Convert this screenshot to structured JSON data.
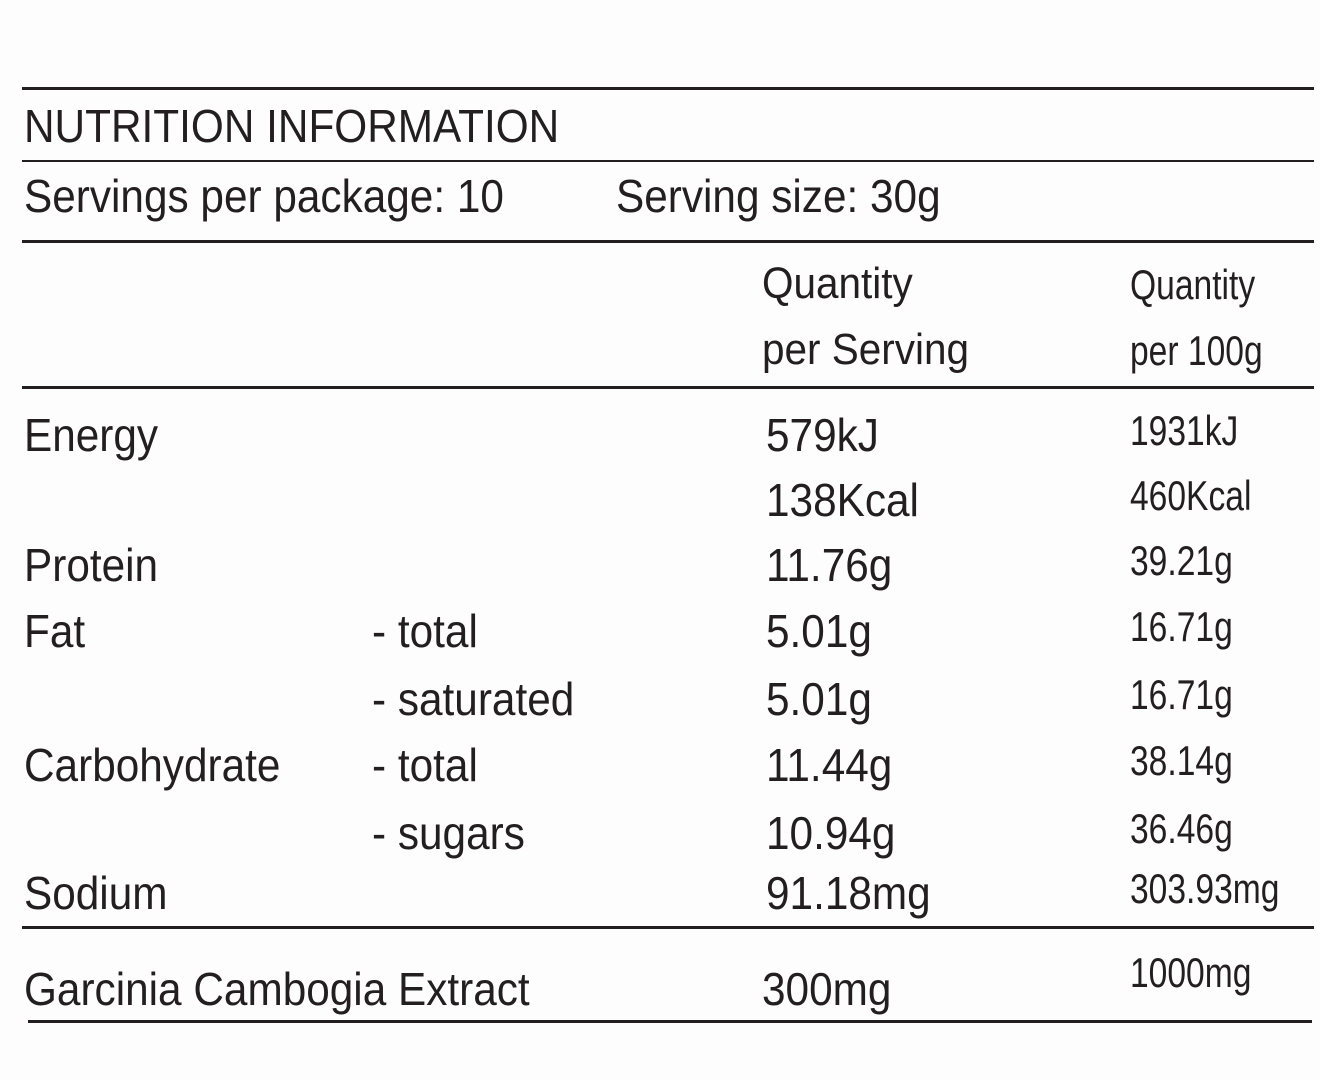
{
  "title": "NUTRITION INFORMATION",
  "servings": {
    "per_package": "Servings per package: 10",
    "serving_size": "Serving size: 30g"
  },
  "headers": {
    "per_serving": [
      "Quantity",
      "per Serving"
    ],
    "per_100g": [
      "Quantity",
      "per 100g"
    ]
  },
  "rows": [
    {
      "name": "Energy",
      "serving": "579kJ",
      "per_100g": "1931kJ"
    },
    {
      "serving": "138Kcal",
      "per_100g": "460Kcal"
    },
    {
      "name": "Protein",
      "serving": "11.76g",
      "per_100g": "39.21g"
    },
    {
      "name": "Fat",
      "sub": "- total",
      "serving": "5.01g",
      "per_100g": "16.71g"
    },
    {
      "sub": "- saturated",
      "serving": "5.01g",
      "per_100g": "16.71g"
    },
    {
      "name": "Carbohydrate",
      "sub": "- total",
      "serving": "11.44g",
      "per_100g": "38.14g"
    },
    {
      "sub": "- sugars",
      "serving": "10.94g",
      "per_100g": "36.46g"
    },
    {
      "name": "Sodium",
      "serving": "91.18mg",
      "per_100g": "303.93mg"
    }
  ],
  "extract": {
    "name": "Garcinia Cambogia Extract",
    "serving": "300mg",
    "per_100g": "1000mg"
  }
}
